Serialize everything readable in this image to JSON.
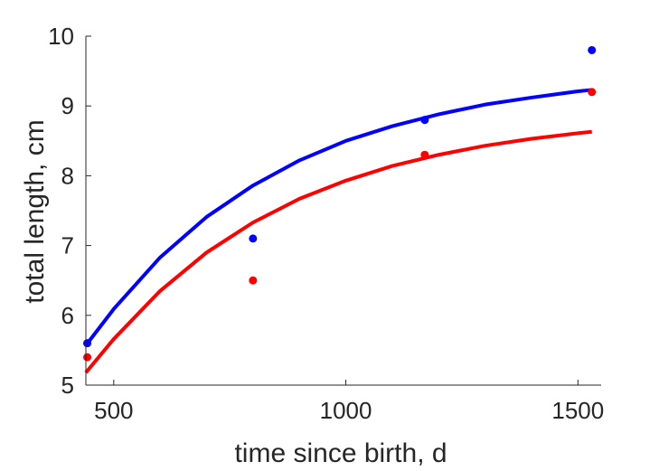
{
  "chart_data": {
    "type": "scatter",
    "title": "",
    "xlabel": "time since birth, d",
    "ylabel": "total length, cm",
    "xlim": [
      440,
      1550
    ],
    "ylim": [
      5,
      10
    ],
    "xticks": [
      500,
      1000,
      1500
    ],
    "yticks": [
      5,
      6,
      7,
      8,
      9,
      10
    ],
    "grid": false,
    "legend": "none",
    "series": [
      {
        "color": "#0000ff",
        "points": {
          "x": [
            443,
            800,
            1170,
            1530
          ],
          "y": [
            5.6,
            7.1,
            8.8,
            9.8
          ]
        },
        "curve": {
          "x": [
            440,
            500,
            600,
            700,
            800,
            900,
            1000,
            1100,
            1200,
            1300,
            1400,
            1500,
            1530
          ],
          "y": [
            5.57,
            6.09,
            6.83,
            7.41,
            7.86,
            8.22,
            8.5,
            8.71,
            8.88,
            9.02,
            9.12,
            9.21,
            9.23
          ]
        }
      },
      {
        "color": "#ff0000",
        "points": {
          "x": [
            443,
            800,
            1170,
            1530
          ],
          "y": [
            5.4,
            6.5,
            8.3,
            9.2
          ]
        },
        "curve": {
          "x": [
            440,
            500,
            600,
            700,
            800,
            900,
            1000,
            1100,
            1200,
            1300,
            1400,
            1500,
            1530
          ],
          "y": [
            5.18,
            5.66,
            6.35,
            6.9,
            7.33,
            7.67,
            7.93,
            8.14,
            8.3,
            8.43,
            8.53,
            8.61,
            8.63
          ]
        }
      }
    ]
  }
}
